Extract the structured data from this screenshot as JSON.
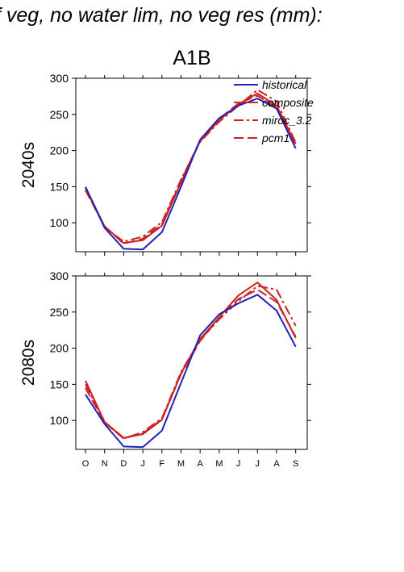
{
  "figure": {
    "title_text": "f veg, no water lim, no veg res (mm):",
    "scenario": "A1B"
  },
  "colors": {
    "historical": "#2222bb",
    "scenario": "#cc2222",
    "axis": "#000000"
  },
  "legend_items": [
    {
      "label": "historical",
      "style": "solid",
      "color": "#2222bb"
    },
    {
      "label": "composite",
      "style": "solid",
      "color": "#cc2222"
    },
    {
      "label": "miroc_3.2",
      "style": "dashdot",
      "color": "#cc2222"
    },
    {
      "label": "pcm1",
      "style": "dash",
      "color": "#cc2222"
    }
  ],
  "chart_data": [
    {
      "type": "line",
      "panel": "2040s",
      "ylabel": "2040s",
      "ylim": [
        60,
        300
      ],
      "yticks": [
        100,
        150,
        200,
        250,
        300
      ],
      "x": [
        "O",
        "N",
        "D",
        "J",
        "F",
        "M",
        "A",
        "M",
        "J",
        "J",
        "A",
        "S"
      ],
      "show_xticklabels": false,
      "series": [
        {
          "name": "historical",
          "style": "solid",
          "color": "#2222bb",
          "values": [
            150,
            93,
            64,
            63,
            87,
            150,
            215,
            245,
            262,
            272,
            258,
            203
          ]
        },
        {
          "name": "composite",
          "style": "solid",
          "color": "#cc2222",
          "values": [
            149,
            95,
            72,
            76,
            96,
            156,
            213,
            242,
            264,
            279,
            262,
            209
          ]
        },
        {
          "name": "miroc_3.2",
          "style": "dashdot",
          "color": "#cc2222",
          "values": [
            147,
            94,
            74,
            81,
            101,
            160,
            212,
            240,
            262,
            284,
            268,
            211
          ]
        },
        {
          "name": "pcm1",
          "style": "dash",
          "color": "#cc2222",
          "values": [
            145,
            95,
            71,
            78,
            98,
            158,
            214,
            244,
            265,
            276,
            259,
            207
          ]
        }
      ]
    },
    {
      "type": "line",
      "panel": "2080s",
      "ylabel": "2080s",
      "ylim": [
        60,
        300
      ],
      "yticks": [
        100,
        150,
        200,
        250,
        300
      ],
      "x": [
        "O",
        "N",
        "D",
        "J",
        "F",
        "M",
        "A",
        "M",
        "J",
        "J",
        "A",
        "S"
      ],
      "show_xticklabels": true,
      "series": [
        {
          "name": "historical",
          "style": "solid",
          "color": "#2222bb",
          "values": [
            136,
            95,
            64,
            63,
            86,
            152,
            218,
            247,
            262,
            274,
            252,
            202
          ]
        },
        {
          "name": "composite",
          "style": "solid",
          "color": "#cc2222",
          "values": [
            155,
            98,
            76,
            81,
            101,
            165,
            213,
            243,
            273,
            291,
            267,
            214
          ]
        },
        {
          "name": "miroc_3.2",
          "style": "dashdot",
          "color": "#cc2222",
          "values": [
            150,
            98,
            75,
            84,
            103,
            167,
            212,
            240,
            265,
            286,
            281,
            231
          ]
        },
        {
          "name": "pcm1",
          "style": "dash",
          "color": "#cc2222",
          "values": [
            145,
            97,
            75,
            82,
            102,
            164,
            210,
            242,
            268,
            281,
            264,
            216
          ]
        }
      ]
    }
  ]
}
